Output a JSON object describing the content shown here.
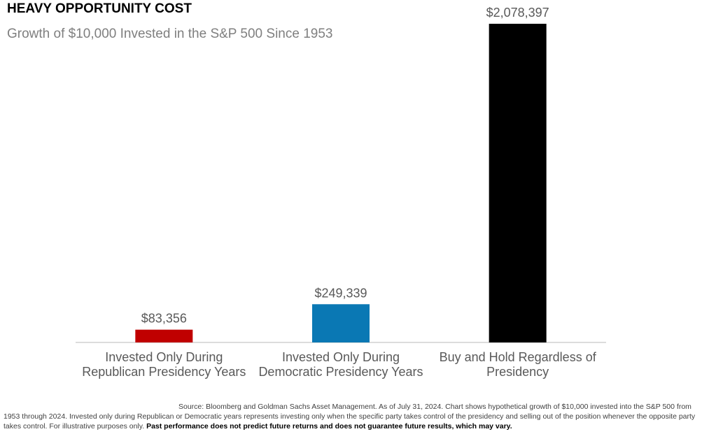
{
  "chart_data": {
    "type": "bar",
    "title": "HEAVY OPPORTUNITY COST",
    "subtitle": "Growth of $10,000 Invested in the S&P 500 Since 1953",
    "categories": [
      "Invested Only During Republican Presidency Years",
      "Invested Only During Democratic Presidency Years",
      "Buy and Hold Regardless of Presidency"
    ],
    "values": [
      83356,
      249339,
      2078397
    ],
    "value_labels": [
      "$83,356",
      "$249,339",
      "$2,078,397"
    ],
    "colors": [
      "#c00000",
      "#0a78b4",
      "#000000"
    ],
    "source_note": "Source: Bloomberg and Goldman Sachs Asset Management. As of July 31, 2024. Chart shows hypothetical growth of $10,000 invested into the S&P 500 from 1953 through 2024. Invested only during Republican or Democratic years represents investing only when the specific party takes control of the presidency and selling out of the position whenever the opposite party takes control. For illustrative purposes only.",
    "disclaimer": "Past performance does not predict future returns and does not guarantee future results, which may vary."
  }
}
